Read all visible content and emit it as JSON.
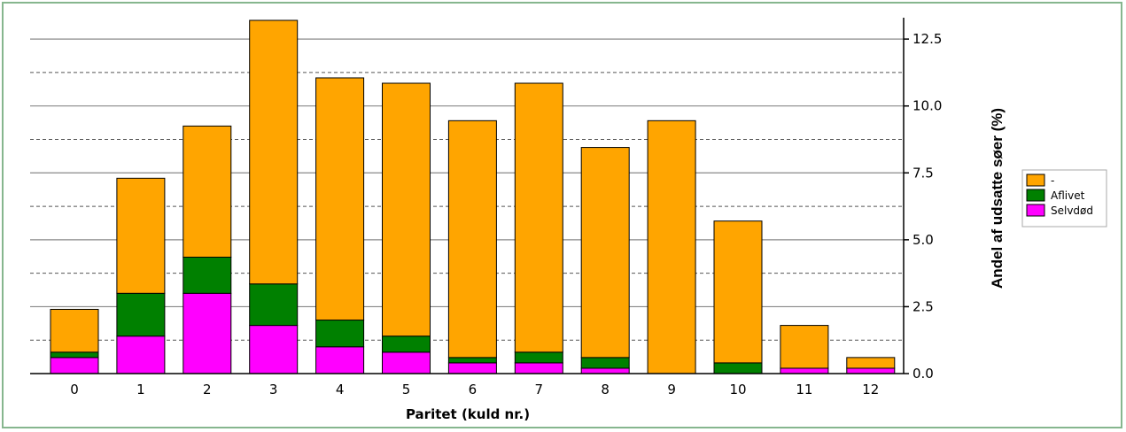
{
  "chart_data": {
    "type": "bar",
    "stacked": true,
    "categories": [
      "0",
      "1",
      "2",
      "3",
      "4",
      "5",
      "6",
      "7",
      "8",
      "9",
      "10",
      "11",
      "12"
    ],
    "series": [
      {
        "name": "Selvdød",
        "color": "#ff00ff",
        "values": [
          0.6,
          1.4,
          3.0,
          1.8,
          1.0,
          0.8,
          0.4,
          0.4,
          0.2,
          0.0,
          0.0,
          0.2,
          0.2
        ]
      },
      {
        "name": "Aflivet",
        "color": "#008000",
        "values": [
          0.2,
          1.6,
          1.35,
          1.55,
          1.0,
          0.6,
          0.2,
          0.4,
          0.4,
          0.0,
          0.4,
          0.0,
          0.0
        ]
      },
      {
        "name": "-",
        "color": "#ffa500",
        "values": [
          1.6,
          4.3,
          4.9,
          9.85,
          9.05,
          9.45,
          8.85,
          10.05,
          7.85,
          9.45,
          5.3,
          1.6,
          0.4
        ]
      }
    ],
    "xlabel": "Paritet (kuld nr.)",
    "ylabel": "Andel af udsatte søer (%)",
    "ylim": [
      0,
      13.1
    ],
    "yticks": [
      "0.0",
      "2.5",
      "5.0",
      "7.5",
      "10.0",
      "12.5"
    ],
    "ytick_values": [
      0,
      2.5,
      5.0,
      7.5,
      10.0,
      12.5
    ],
    "y_axis_position": "right",
    "grid": true,
    "minor_grid_dashed": true,
    "legend_position": "right",
    "legend_order": [
      "-",
      "Aflivet",
      "Selvdød"
    ]
  }
}
